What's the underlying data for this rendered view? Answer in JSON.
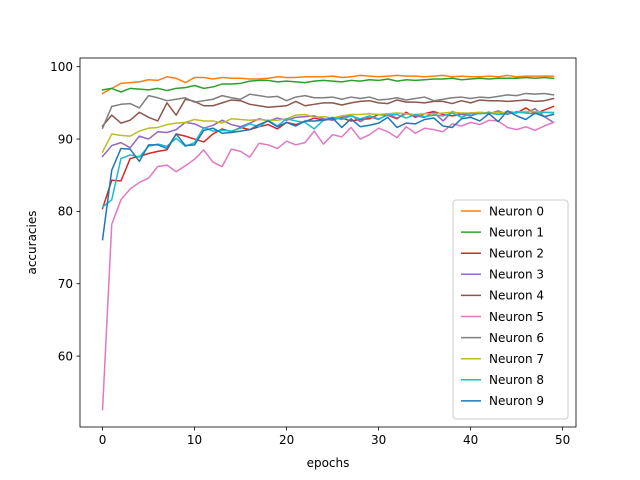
{
  "chart_data": {
    "type": "line",
    "title": "",
    "xlabel": "epochs",
    "ylabel": "accuracies",
    "xlim": [
      -2.45,
      51.45
    ],
    "ylim": [
      50.2,
      101.2
    ],
    "xticks": [
      0,
      10,
      20,
      30,
      40,
      50
    ],
    "yticks": [
      60,
      70,
      80,
      90,
      100
    ],
    "grid": false,
    "legend_position": "lower-right",
    "x": [
      0,
      1,
      2,
      3,
      4,
      5,
      6,
      7,
      8,
      9,
      10,
      11,
      12,
      13,
      14,
      15,
      16,
      17,
      18,
      19,
      20,
      21,
      22,
      23,
      24,
      25,
      26,
      27,
      28,
      29,
      30,
      31,
      32,
      33,
      34,
      35,
      36,
      37,
      38,
      39,
      40,
      41,
      42,
      43,
      44,
      45,
      46,
      47,
      48,
      49
    ],
    "series": [
      {
        "name": "Neuron 0",
        "color": "#ff7f0e",
        "values": [
          96.3,
          97.0,
          97.7,
          97.8,
          97.9,
          98.2,
          98.1,
          98.6,
          98.4,
          97.8,
          98.5,
          98.5,
          98.3,
          98.5,
          98.4,
          98.4,
          98.3,
          98.3,
          98.4,
          98.6,
          98.5,
          98.5,
          98.6,
          98.6,
          98.6,
          98.7,
          98.5,
          98.6,
          98.8,
          98.7,
          98.6,
          98.7,
          98.8,
          98.7,
          98.7,
          98.6,
          98.7,
          98.8,
          98.6,
          98.7,
          98.6,
          98.6,
          98.7,
          98.6,
          98.8,
          98.6,
          98.7,
          98.7,
          98.7,
          98.7
        ]
      },
      {
        "name": "Neuron 1",
        "color": "#2ca02c",
        "values": [
          96.8,
          97.0,
          96.5,
          97.0,
          96.9,
          96.8,
          97.0,
          96.7,
          97.0,
          97.1,
          97.4,
          97.0,
          97.2,
          97.6,
          97.6,
          97.7,
          98.0,
          98.1,
          98.1,
          97.9,
          98.0,
          97.9,
          97.8,
          98.0,
          98.1,
          98.0,
          97.9,
          98.1,
          98.0,
          98.2,
          98.1,
          98.3,
          98.0,
          98.2,
          98.1,
          98.2,
          98.3,
          98.3,
          98.4,
          98.2,
          98.3,
          98.4,
          98.3,
          98.4,
          98.4,
          98.4,
          98.5,
          98.4,
          98.5,
          98.4
        ]
      },
      {
        "name": "Neuron 2",
        "color": "#d62728",
        "values": [
          80.4,
          84.3,
          84.2,
          87.3,
          87.6,
          88.0,
          88.3,
          88.5,
          90.7,
          90.4,
          90.0,
          89.6,
          90.7,
          91.4,
          91.0,
          91.6,
          91.3,
          91.7,
          92.0,
          91.4,
          92.3,
          92.0,
          92.4,
          92.9,
          92.6,
          92.8,
          92.9,
          92.5,
          92.7,
          92.8,
          93.4,
          93.3,
          92.8,
          93.7,
          93.0,
          93.5,
          93.8,
          93.4,
          93.2,
          93.4,
          93.6,
          93.5,
          93.7,
          93.4,
          93.8,
          93.6,
          94.3,
          93.5,
          94.0,
          94.5
        ]
      },
      {
        "name": "Neuron 3",
        "color": "#9467bd",
        "values": [
          87.6,
          89.1,
          89.5,
          88.8,
          90.4,
          90.0,
          91.0,
          90.9,
          91.3,
          92.3,
          92.1,
          91.5,
          91.9,
          92.6,
          92.0,
          91.7,
          92.2,
          92.8,
          92.5,
          92.9,
          92.6,
          93.0,
          93.1,
          93.2,
          92.8,
          92.6,
          93.0,
          93.3,
          92.4,
          93.1,
          92.7,
          93.4,
          92.9,
          93.5,
          93.2,
          93.0,
          93.7,
          92.5,
          93.8,
          93.4,
          93.2,
          93.6,
          93.5,
          93.9,
          93.4,
          93.8,
          93.6,
          94.2,
          93.1,
          92.3
        ]
      },
      {
        "name": "Neuron 4",
        "color": "#8c564b",
        "values": [
          91.8,
          93.3,
          92.2,
          92.6,
          93.7,
          93.0,
          92.5,
          95.0,
          93.3,
          95.5,
          95.2,
          94.6,
          94.6,
          95.0,
          95.4,
          95.3,
          94.8,
          94.6,
          94.4,
          94.5,
          94.6,
          95.2,
          94.6,
          94.8,
          95.0,
          95.0,
          94.7,
          95.0,
          95.2,
          95.3,
          95.0,
          94.9,
          95.4,
          95.1,
          95.1,
          95.0,
          95.2,
          95.2,
          94.9,
          95.3,
          95.0,
          95.4,
          95.3,
          95.3,
          95.2,
          95.3,
          95.4,
          95.2,
          95.3,
          95.6
        ]
      },
      {
        "name": "Neuron 5",
        "color": "#e377c2",
        "values": [
          52.6,
          78.2,
          81.6,
          83.1,
          84.0,
          84.6,
          86.2,
          86.4,
          85.5,
          86.3,
          87.2,
          88.5,
          86.8,
          86.2,
          88.6,
          88.3,
          87.5,
          89.4,
          89.2,
          88.7,
          89.7,
          89.2,
          89.5,
          91.1,
          89.3,
          90.6,
          90.3,
          91.6,
          90.0,
          90.6,
          91.5,
          91.0,
          90.2,
          91.7,
          90.8,
          91.5,
          91.3,
          91.0,
          92.1,
          91.8,
          92.3,
          92.0,
          92.6,
          92.5,
          91.6,
          91.3,
          91.7,
          91.2,
          91.8,
          92.3
        ]
      },
      {
        "name": "Neuron 6",
        "color": "#7f7f7f",
        "values": [
          91.5,
          94.5,
          94.8,
          94.9,
          94.3,
          96.0,
          95.7,
          95.3,
          95.5,
          95.7,
          95.1,
          95.3,
          95.5,
          96.0,
          95.7,
          95.5,
          96.2,
          96.0,
          95.8,
          95.9,
          95.3,
          95.8,
          96.0,
          95.7,
          95.7,
          95.8,
          95.5,
          95.8,
          95.6,
          95.8,
          95.4,
          95.5,
          95.7,
          95.4,
          95.6,
          95.8,
          95.3,
          95.5,
          95.7,
          95.8,
          95.6,
          95.8,
          95.7,
          95.9,
          96.1,
          96.0,
          96.3,
          96.2,
          96.3,
          96.1
        ]
      },
      {
        "name": "Neuron 7",
        "color": "#bcbd22",
        "values": [
          88.2,
          90.7,
          90.5,
          90.4,
          91.1,
          91.5,
          91.6,
          92.0,
          92.2,
          92.3,
          92.7,
          92.5,
          92.5,
          92.2,
          92.8,
          92.7,
          92.6,
          92.7,
          92.6,
          92.6,
          92.8,
          93.3,
          93.4,
          93.0,
          93.1,
          92.9,
          93.2,
          93.4,
          93.4,
          93.5,
          93.4,
          93.5,
          93.6,
          93.5,
          93.4,
          93.5,
          93.5,
          93.6,
          93.7,
          93.6,
          93.6,
          93.7,
          93.6,
          93.7,
          93.6,
          93.7,
          93.8,
          93.8,
          93.7,
          93.7
        ]
      },
      {
        "name": "Neuron 8",
        "color": "#17becf",
        "values": [
          80.6,
          81.6,
          87.3,
          87.8,
          87.5,
          89.0,
          89.3,
          89.0,
          90.1,
          89.0,
          89.5,
          91.6,
          91.1,
          91.2,
          91.1,
          91.5,
          92.1,
          91.7,
          92.6,
          91.8,
          92.8,
          92.5,
          92.3,
          91.4,
          92.6,
          93.0,
          92.7,
          93.2,
          92.8,
          93.2,
          92.8,
          93.3,
          93.4,
          92.9,
          93.4,
          93.1,
          93.3,
          93.2,
          93.6,
          93.0,
          93.5,
          93.5,
          93.6,
          93.4,
          93.5,
          93.7,
          93.6,
          93.5,
          93.7,
          93.6
        ]
      },
      {
        "name": "Neuron 9",
        "color": "#1f77b4",
        "values": [
          76.1,
          85.7,
          88.7,
          88.6,
          86.9,
          89.2,
          89.2,
          88.7,
          90.7,
          89.1,
          89.2,
          91.2,
          91.5,
          90.8,
          90.9,
          91.1,
          91.3,
          92.0,
          92.5,
          91.7,
          92.3,
          91.8,
          92.5,
          92.5,
          92.6,
          92.9,
          91.6,
          92.8,
          91.7,
          91.9,
          92.2,
          93.0,
          91.6,
          92.2,
          92.1,
          92.7,
          92.9,
          91.8,
          91.6,
          92.8,
          93.0,
          92.5,
          93.5,
          92.4,
          93.9,
          93.2,
          92.7,
          93.6,
          93.1,
          93.4
        ]
      }
    ]
  }
}
